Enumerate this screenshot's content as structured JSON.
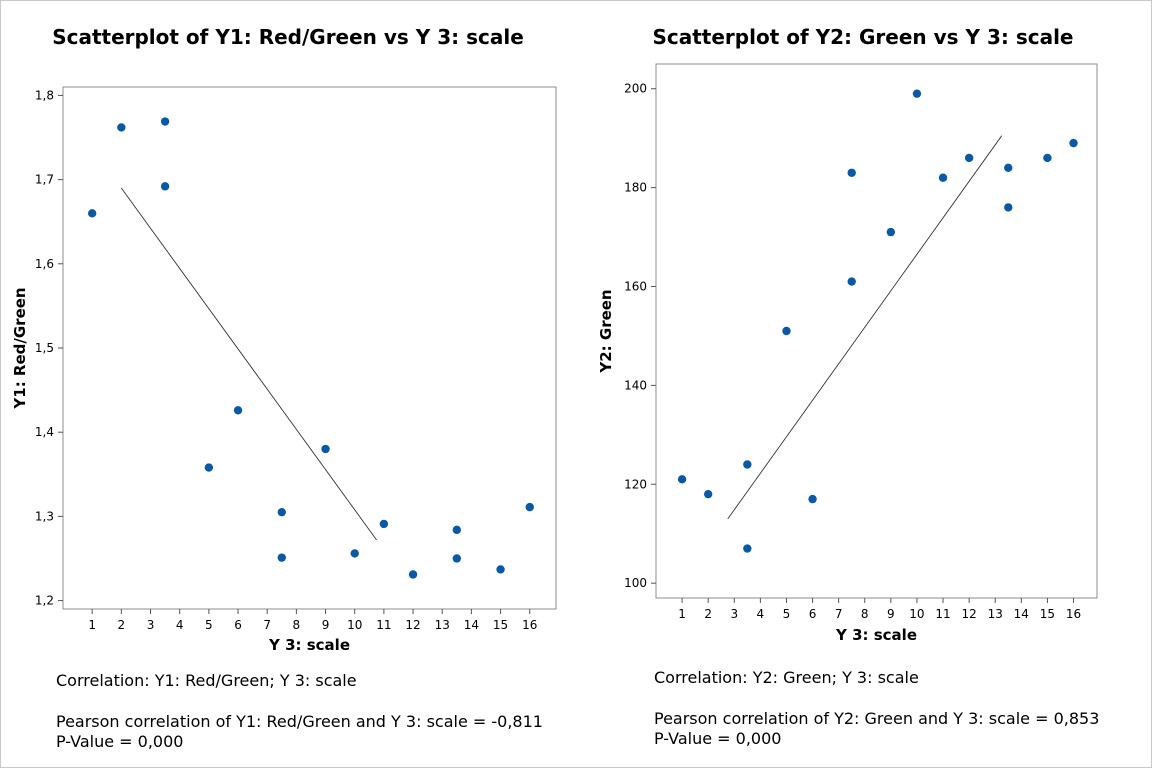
{
  "chart_data": [
    {
      "type": "scatter",
      "title": "Scatterplot of Y1: Red/Green vs Y 3: scale",
      "xlabel": "Y 3: scale",
      "ylabel": "Y1: Red/Green",
      "xlim": [
        0,
        16.9
      ],
      "ylim": [
        1.19,
        1.81
      ],
      "xticks": [
        1,
        2,
        3,
        4,
        5,
        6,
        7,
        8,
        9,
        10,
        11,
        12,
        13,
        14,
        15,
        16
      ],
      "yticks": [
        1.2,
        1.3,
        1.4,
        1.5,
        1.6,
        1.7,
        1.8
      ],
      "ytick_labels": [
        "1,2",
        "1,3",
        "1,4",
        "1,5",
        "1,6",
        "1,7",
        "1,8"
      ],
      "grid": false,
      "points": [
        {
          "x": 1,
          "y": 1.66
        },
        {
          "x": 2,
          "y": 1.762
        },
        {
          "x": 3.5,
          "y": 1.769
        },
        {
          "x": 3.5,
          "y": 1.692
        },
        {
          "x": 5,
          "y": 1.358
        },
        {
          "x": 6,
          "y": 1.426
        },
        {
          "x": 7.5,
          "y": 1.305
        },
        {
          "x": 7.5,
          "y": 1.251
        },
        {
          "x": 9,
          "y": 1.38
        },
        {
          "x": 10,
          "y": 1.256
        },
        {
          "x": 11,
          "y": 1.291
        },
        {
          "x": 12,
          "y": 1.231
        },
        {
          "x": 13.5,
          "y": 1.284
        },
        {
          "x": 13.5,
          "y": 1.25
        },
        {
          "x": 15,
          "y": 1.237
        },
        {
          "x": 16,
          "y": 1.311
        }
      ],
      "fit_line": {
        "x": [
          2,
          10.75
        ],
        "y": [
          1.69,
          1.272
        ]
      },
      "correlation_header": "Correlation: Y1: Red/Green; Y 3: scale",
      "pearson_text": "Pearson correlation of Y1: Red/Green and Y 3: scale = -0,811",
      "pvalue_text": "P-Value = 0,000"
    },
    {
      "type": "scatter",
      "title": "Scatterplot of Y2: Green vs Y 3: scale",
      "xlabel": "Y 3: scale",
      "ylabel": "Y2: Green",
      "xlim": [
        0,
        16.9
      ],
      "ylim": [
        97,
        205
      ],
      "xticks": [
        1,
        2,
        3,
        4,
        5,
        6,
        7,
        8,
        9,
        10,
        11,
        12,
        13,
        14,
        15,
        16
      ],
      "yticks": [
        100,
        120,
        140,
        160,
        180,
        200
      ],
      "ytick_labels": [
        "100",
        "120",
        "140",
        "160",
        "180",
        "200"
      ],
      "grid": false,
      "points": [
        {
          "x": 1,
          "y": 121
        },
        {
          "x": 2,
          "y": 118
        },
        {
          "x": 3.5,
          "y": 124
        },
        {
          "x": 3.5,
          "y": 107
        },
        {
          "x": 5,
          "y": 151
        },
        {
          "x": 6,
          "y": 117
        },
        {
          "x": 7.5,
          "y": 183
        },
        {
          "x": 7.5,
          "y": 161
        },
        {
          "x": 9,
          "y": 171
        },
        {
          "x": 10,
          "y": 199
        },
        {
          "x": 11,
          "y": 182
        },
        {
          "x": 12,
          "y": 186
        },
        {
          "x": 13.5,
          "y": 184
        },
        {
          "x": 13.5,
          "y": 176
        },
        {
          "x": 15,
          "y": 186
        },
        {
          "x": 16,
          "y": 189
        }
      ],
      "fit_line": {
        "x": [
          2.75,
          13.25
        ],
        "y": [
          113,
          190.5
        ]
      },
      "correlation_header": "Correlation: Y2: Green; Y 3: scale",
      "pearson_text": "Pearson correlation of Y2: Green and Y 3: scale = 0,853",
      "pvalue_text": "P-Value = 0,000"
    }
  ],
  "colors": {
    "point": "#0b59a6",
    "fit_line": "#333333",
    "frame": "#8c8c8c",
    "text": "#000000"
  }
}
